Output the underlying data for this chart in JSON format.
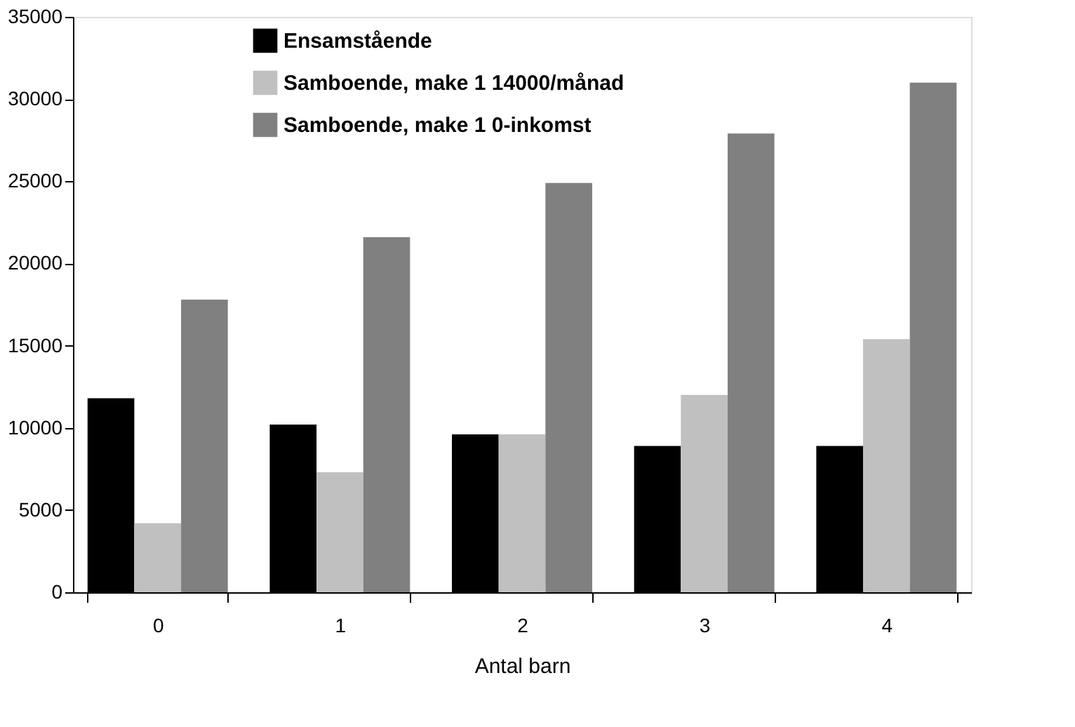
{
  "chart_data": {
    "type": "bar",
    "xlabel": "Antal barn",
    "categories": [
      "0",
      "1",
      "2",
      "3",
      "4"
    ],
    "series": [
      {
        "name": "Ensamstående",
        "color": "#000000",
        "values": [
          11800,
          10200,
          9600,
          8900,
          8900
        ]
      },
      {
        "name": "Samboende, make 1 14000/månad",
        "color": "#c0c0c0",
        "values": [
          4200,
          7300,
          9600,
          12000,
          15400
        ]
      },
      {
        "name": "Samboende, make 1 0-inkomst",
        "color": "#808080",
        "values": [
          17800,
          21600,
          24900,
          27900,
          31000
        ]
      }
    ],
    "ylim": [
      0,
      35000
    ],
    "yticks": [
      0,
      5000,
      10000,
      15000,
      20000,
      25000,
      30000,
      35000
    ],
    "grid": false,
    "legend": "top left"
  }
}
